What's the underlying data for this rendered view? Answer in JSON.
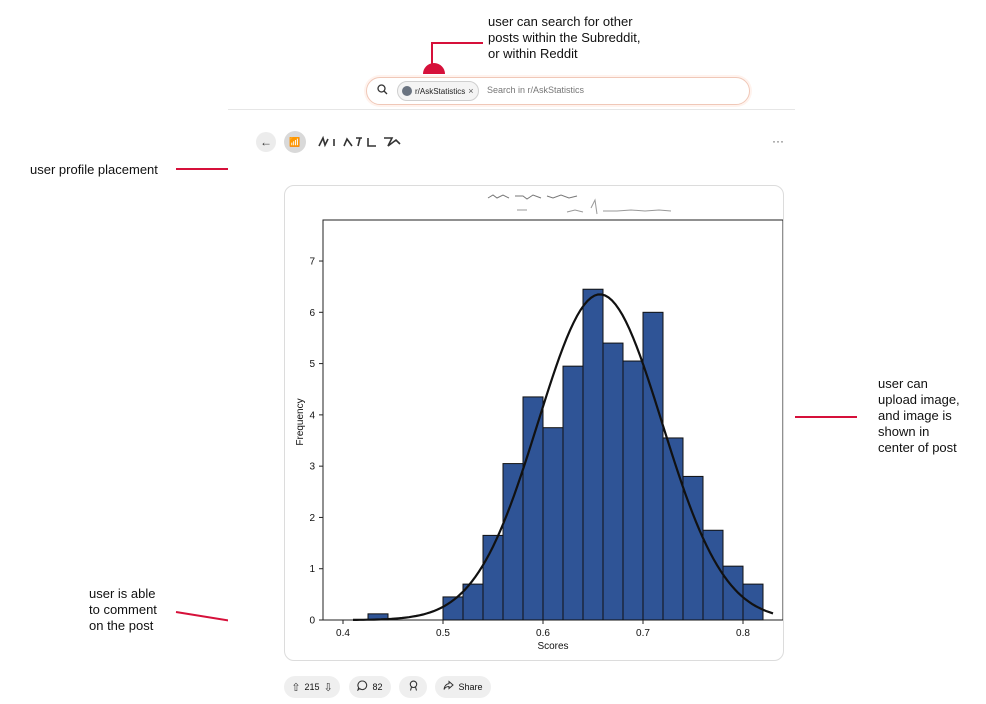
{
  "annotations": {
    "search": [
      "user can search for other",
      "posts within the Subreddit,",
      "or within Reddit"
    ],
    "profile": "user profile placement",
    "image": [
      "user can",
      "upload image,",
      "and image is",
      "shown in",
      "center of post"
    ],
    "comment": [
      "user is able",
      "to comment",
      "on the post"
    ],
    "accent_color": "#d6103a"
  },
  "search": {
    "icon": "search-icon",
    "chip_label": "r/AskStatistics",
    "placeholder": "Search in r/AskStatistics"
  },
  "header": {
    "back_icon": "arrow-left-icon",
    "subreddit_icon": "subreddit-avatar-icon",
    "more_icon": "more-horizontal-icon"
  },
  "post": {
    "upvotes": "215",
    "comments": "82",
    "share_label": "Share"
  },
  "chart_data": {
    "type": "bar",
    "xlabel": "Scores",
    "ylabel": "Frequency",
    "xlim": [
      0.38,
      0.84
    ],
    "ylim": [
      0,
      7.8
    ],
    "xticks": [
      "0.4",
      "0.5",
      "0.6",
      "0.7",
      "0.8"
    ],
    "yticks": [
      "0",
      "1",
      "2",
      "3",
      "4",
      "5",
      "6",
      "7"
    ],
    "bins": [
      {
        "x0": 0.425,
        "x1": 0.445,
        "value": 0.12
      },
      {
        "x0": 0.5,
        "x1": 0.52,
        "value": 0.45
      },
      {
        "x0": 0.52,
        "x1": 0.54,
        "value": 0.7
      },
      {
        "x0": 0.54,
        "x1": 0.56,
        "value": 1.65
      },
      {
        "x0": 0.56,
        "x1": 0.58,
        "value": 3.05
      },
      {
        "x0": 0.58,
        "x1": 0.6,
        "value": 4.35
      },
      {
        "x0": 0.6,
        "x1": 0.62,
        "value": 3.75
      },
      {
        "x0": 0.62,
        "x1": 0.64,
        "value": 4.95
      },
      {
        "x0": 0.64,
        "x1": 0.66,
        "value": 6.45
      },
      {
        "x0": 0.66,
        "x1": 0.68,
        "value": 5.4
      },
      {
        "x0": 0.68,
        "x1": 0.7,
        "value": 5.05
      },
      {
        "x0": 0.7,
        "x1": 0.72,
        "value": 6.0
      },
      {
        "x0": 0.72,
        "x1": 0.74,
        "value": 3.55
      },
      {
        "x0": 0.74,
        "x1": 0.76,
        "value": 2.8
      },
      {
        "x0": 0.76,
        "x1": 0.78,
        "value": 1.75
      },
      {
        "x0": 0.78,
        "x1": 0.8,
        "value": 1.05
      },
      {
        "x0": 0.8,
        "x1": 0.82,
        "value": 0.7
      }
    ],
    "curve": {
      "type": "normal",
      "mean": 0.657,
      "sd": 0.062,
      "peak": 6.35,
      "range": [
        0.41,
        0.83
      ]
    },
    "bar_color": "#2f5496",
    "curve_color": "#111111"
  }
}
